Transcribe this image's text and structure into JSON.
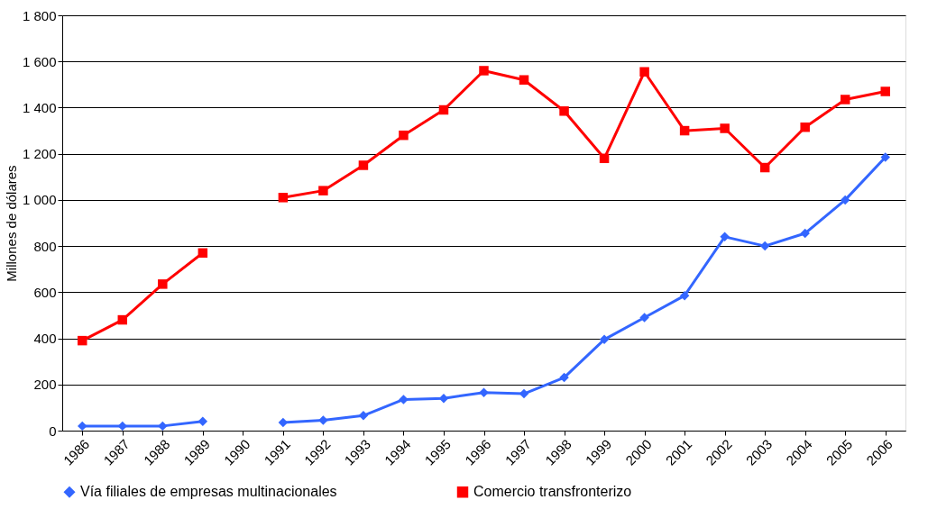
{
  "chart_data": {
    "type": "line",
    "ylabel": "Millones de dólares",
    "categories": [
      "1986",
      "1987",
      "1988",
      "1989",
      "1990",
      "1991",
      "1992",
      "1993",
      "1994",
      "1995",
      "1996",
      "1997",
      "1998",
      "1999",
      "2000",
      "2001",
      "2002",
      "2003",
      "2004",
      "2005",
      "2006"
    ],
    "series": [
      {
        "name": "Vía filiales de empresas multinacionales",
        "color": "#3366ff",
        "marker": "diamond",
        "values": [
          20,
          20,
          20,
          40,
          null,
          35,
          45,
          65,
          135,
          140,
          165,
          160,
          230,
          395,
          490,
          585,
          840,
          800,
          855,
          1000,
          1185
        ]
      },
      {
        "name": "Comercio transfronterizo",
        "color": "#ff0000",
        "marker": "square",
        "values": [
          390,
          480,
          635,
          770,
          null,
          1010,
          1040,
          1150,
          1280,
          1390,
          1560,
          1520,
          1385,
          1180,
          1555,
          1300,
          1310,
          1140,
          1315,
          1435,
          1470
        ]
      }
    ],
    "ylim": [
      0,
      1800
    ],
    "yticks": [
      0,
      200,
      400,
      600,
      800,
      {
        "value": 1000,
        "label": "1 000"
      },
      {
        "value": 1200,
        "label": "1 200"
      },
      {
        "value": 1400,
        "label": "1 400"
      },
      {
        "value": 1600,
        "label": "1 600"
      },
      {
        "value": 1800,
        "label": "1 800"
      }
    ],
    "grid": "y",
    "legend": "bottom",
    "line_style": "solid"
  }
}
